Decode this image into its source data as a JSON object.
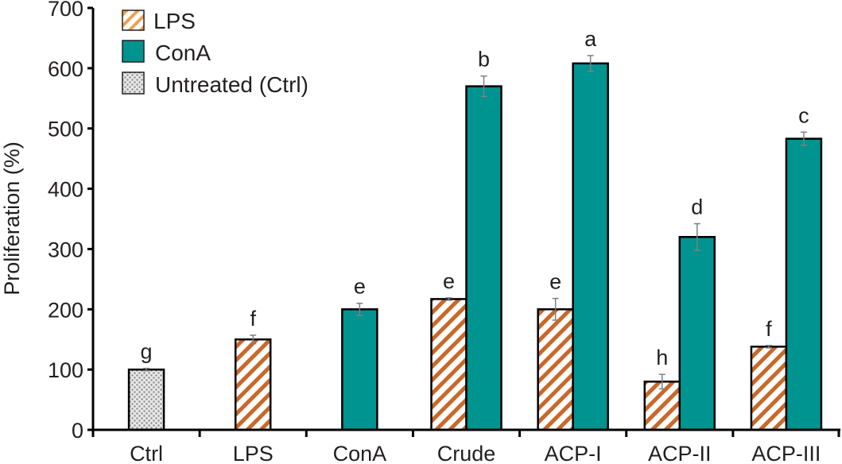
{
  "chart_data": {
    "type": "bar",
    "title": "",
    "xlabel": "",
    "ylabel": "Proliferation (%)",
    "ylim": [
      0,
      700
    ],
    "yticks": [
      0,
      100,
      200,
      300,
      400,
      500,
      600,
      700
    ],
    "grid": false,
    "legend_position": "top-left",
    "categories": [
      "Ctrl",
      "LPS",
      "ConA",
      "Crude",
      "ACP-I",
      "ACP-II",
      "ACP-III"
    ],
    "series": [
      {
        "name": "LPS",
        "pattern": "orange-diagonal-hatch",
        "color": "#c8682a",
        "values": [
          null,
          150,
          null,
          217,
          200,
          80,
          138
        ],
        "errors": [
          null,
          7,
          null,
          2,
          18,
          12,
          2
        ],
        "labels": [
          null,
          "f",
          null,
          "e",
          "e",
          "h",
          "f"
        ]
      },
      {
        "name": "ConA",
        "pattern": "solid",
        "color": "#009490",
        "values": [
          null,
          null,
          200,
          570,
          608,
          null,
          483
        ],
        "errors": [
          null,
          null,
          10,
          17,
          13,
          null,
          11
        ],
        "labels": [
          null,
          null,
          "e",
          "b",
          "a",
          null,
          "c"
        ]
      },
      {
        "name": "Untreated (Ctrl)",
        "pattern": "gray-stipple",
        "color": "#9a9a9a",
        "values": [
          100,
          null,
          null,
          null,
          null,
          null,
          null
        ],
        "errors": [
          2,
          null,
          null,
          null,
          null,
          null,
          null
        ],
        "labels": [
          "g",
          null,
          null,
          null,
          null,
          null,
          null
        ]
      }
    ],
    "acp_ii_cona": {
      "value": 320,
      "error": 22,
      "label": "d"
    }
  },
  "legend": [
    {
      "label": "LPS",
      "key": "lps"
    },
    {
      "label": "ConA",
      "key": "cona"
    },
    {
      "label": "Untreated (Ctrl)",
      "key": "ctrl"
    }
  ],
  "colors": {
    "cona_fill": "#009490",
    "lps_stripe": "#c8682a",
    "axis": "#000000",
    "error_bar": "#808080",
    "text": "#231f20"
  }
}
